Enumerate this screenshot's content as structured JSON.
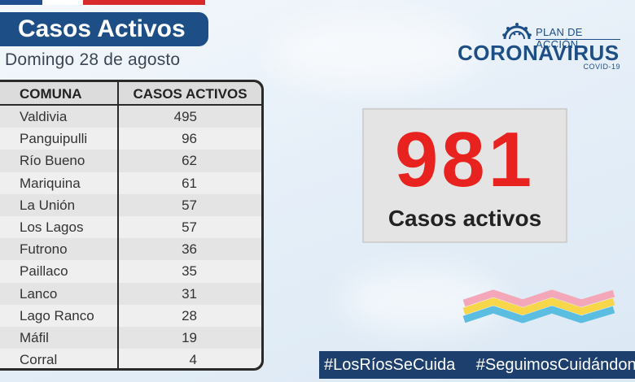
{
  "header": {
    "title": "Casos Activos",
    "date": "Domingo 28 de agosto"
  },
  "logo": {
    "plan": "PLAN DE ACCIÓN",
    "main": "CORONAVIRUS",
    "sub": "COVID-19"
  },
  "table": {
    "col_comuna": "COMUNA",
    "col_casos": "CASOS ACTIVOS",
    "rows": [
      {
        "comuna": "Valdivia",
        "casos": "495"
      },
      {
        "comuna": "Panguipulli",
        "casos": "96"
      },
      {
        "comuna": "Río Bueno",
        "casos": "62"
      },
      {
        "comuna": "Mariquina",
        "casos": "61"
      },
      {
        "comuna": "La Unión",
        "casos": "57"
      },
      {
        "comuna": "Los Lagos",
        "casos": "57"
      },
      {
        "comuna": "Futrono",
        "casos": "36"
      },
      {
        "comuna": "Paillaco",
        "casos": "35"
      },
      {
        "comuna": "Lanco",
        "casos": "31"
      },
      {
        "comuna": "Lago Ranco",
        "casos": "28"
      },
      {
        "comuna": "Máfil",
        "casos": "19"
      },
      {
        "comuna": "Corral",
        "casos": "4"
      }
    ]
  },
  "summary": {
    "total": "981",
    "label": "Casos activos"
  },
  "hashtags": [
    "#LosRíosSeCuida",
    "#SeguimosCuidándonos"
  ],
  "colors": {
    "brand_blue": "#1d4f86",
    "highlight_red": "#e8221f",
    "hashtag_bg": "#1d3f6e"
  }
}
